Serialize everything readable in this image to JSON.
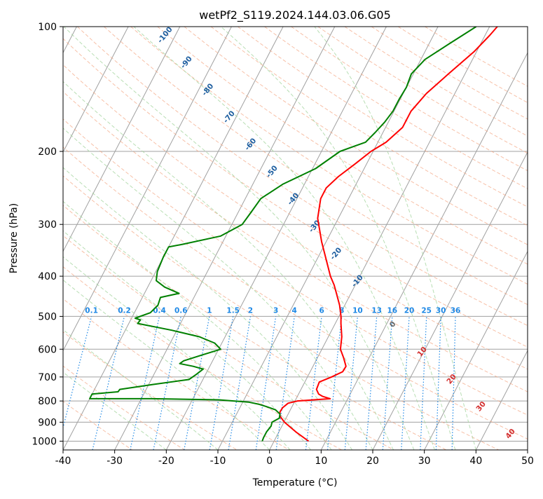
{
  "chart_data": {
    "type": "line",
    "title": "wetPf2_S119.2024.144.03.06.G05",
    "xlabel": "Temperature (°C)",
    "ylabel": "Pressure (hPa)",
    "xlim": [
      -40,
      50
    ],
    "ylim": [
      1050,
      100
    ],
    "y_scale": "log",
    "grid": true,
    "x_ticks": [
      -40,
      -30,
      -20,
      -10,
      0,
      10,
      20,
      30,
      40,
      50
    ],
    "y_ticks": [
      100,
      200,
      300,
      400,
      500,
      600,
      700,
      800,
      900,
      1000
    ],
    "colors": {
      "temperature": "#ff0000",
      "dewpoint": "#008000",
      "isotherm": "#a0a0a0",
      "dry_adiabat": "#f4a582",
      "moist_adiabat": "#a6d6a0",
      "mixing_ratio": "#1e88e5",
      "dry_label": "#1f5fa0",
      "moist_label": "#d32f2f"
    },
    "series": [
      {
        "key": "temperature",
        "p": [
          1000,
          950,
          900,
          870,
          850,
          830,
          810,
          800,
          790,
          780,
          770,
          750,
          720,
          700,
          680,
          660,
          630,
          600,
          560,
          520,
          500,
          470,
          440,
          420,
          400,
          370,
          330,
          290,
          260,
          245,
          230,
          215,
          200,
          190,
          175,
          160,
          145,
          130,
          115,
          105,
          100
        ],
        "t": [
          6.7,
          3.3,
          0.1,
          -1.4,
          -1.8,
          -1.7,
          -1.1,
          0.5,
          6.6,
          4.9,
          3.9,
          3.0,
          2.8,
          4.7,
          6.3,
          6.4,
          5.1,
          3.6,
          2.6,
          1.1,
          0.4,
          -1.0,
          -2.8,
          -4.1,
          -5.7,
          -7.8,
          -10.9,
          -14.0,
          -15.4,
          -15.4,
          -14.2,
          -12.3,
          -10.4,
          -8.4,
          -6.7,
          -6.7,
          -5.5,
          -3.2,
          -0.5,
          0.9,
          1.5
        ]
      },
      {
        "key": "dewpoint",
        "p": [
          1000,
          980,
          950,
          920,
          900,
          880,
          860,
          840,
          825,
          815,
          805,
          795,
          790,
          790,
          770,
          760,
          750,
          730,
          710,
          690,
          670,
          660,
          650,
          640,
          620,
          600,
          580,
          560,
          540,
          520,
          510,
          505,
          490,
          470,
          450,
          440,
          425,
          410,
          390,
          360,
          340,
          335,
          320,
          300,
          280,
          260,
          240,
          220,
          200,
          190,
          180,
          170,
          160,
          150,
          140,
          130,
          120,
          110,
          100
        ],
        "t": [
          -2.3,
          -2.4,
          -2.4,
          -2.1,
          -2.3,
          -1.3,
          -1.6,
          -2.9,
          -5.0,
          -6.6,
          -8.9,
          -14.9,
          -28.0,
          -40.0,
          -40.0,
          -35.2,
          -35.1,
          -29.2,
          -22.7,
          -21.8,
          -21.0,
          -23.2,
          -26.1,
          -25.6,
          -22.7,
          -19.6,
          -21.4,
          -25.0,
          -31.0,
          -38.3,
          -38.1,
          -39.3,
          -36.9,
          -36.2,
          -36.5,
          -33.3,
          -36.7,
          -39.0,
          -39.7,
          -40.0,
          -40.0,
          -37.5,
          -31.0,
          -28.0,
          -27.5,
          -27.0,
          -24.2,
          -19.4,
          -16.4,
          -12.4,
          -11.5,
          -10.7,
          -10.2,
          -10.2,
          -10.0,
          -10.4,
          -9.2,
          -6.1,
          -2.6
        ]
      }
    ],
    "dry_adiabat_labels": [
      "-100",
      "-90",
      "-80",
      "-70",
      "-60",
      "-50",
      "-40",
      "-30",
      "-20",
      "-10"
    ],
    "moist_adiabat_labels": [
      "0",
      "10",
      "20",
      "30",
      "40"
    ],
    "mixing_ratio_labels": [
      "0.1",
      "0.2",
      "0.4",
      "0.6",
      "1",
      "1.5",
      "2",
      "3",
      "4",
      "6",
      "8",
      "10",
      "13",
      "16",
      "20",
      "25",
      "30",
      "36"
    ]
  }
}
